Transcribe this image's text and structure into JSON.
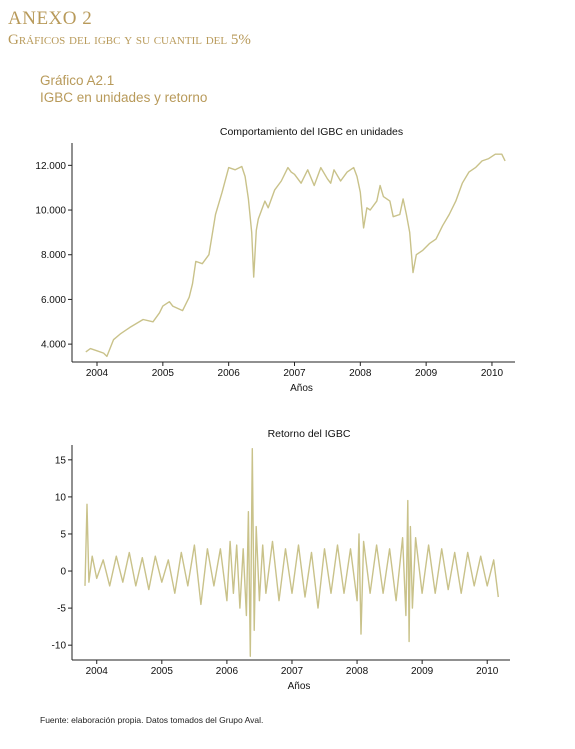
{
  "header": {
    "annex_title": "ANEXO 2",
    "annex_subtitle": "Gráficos del igbc y su cuantil del 5%",
    "figure_number": "Gráfico A2.1",
    "figure_title": "IGBC en unidades y retorno"
  },
  "footer": {
    "source": "Fuente: elaboración propia. Datos tomados del Grupo Aval."
  },
  "colors": {
    "series": "#c9c28a",
    "axis": "#222222",
    "heading": "#b89a5a"
  },
  "chart_data": [
    {
      "type": "line",
      "title": "Comportamiento del IGBC en unidades",
      "xlabel": "Años",
      "ylabel": "",
      "xlim": [
        2003.62,
        2010.35
      ],
      "ylim": [
        3200,
        13000
      ],
      "xticks": [
        2004,
        2005,
        2006,
        2007,
        2008,
        2009,
        2010
      ],
      "xtick_labels": [
        "2004",
        "2005",
        "2006",
        "2007",
        "2008",
        "2009",
        "2010"
      ],
      "yticks": [
        4000,
        6000,
        8000,
        10000,
        12000
      ],
      "ytick_labels": [
        "4.000",
        "6.000",
        "8.000",
        "10.000",
        "12.000"
      ],
      "grid": false,
      "series": [
        {
          "x": [
            2003.83,
            2003.9,
            2004.0,
            2004.1,
            2004.15,
            2004.25,
            2004.35,
            2004.5,
            2004.7,
            2004.85,
            2004.95,
            2005.0,
            2005.1,
            2005.15,
            2005.3,
            2005.4,
            2005.45,
            2005.5,
            2005.6,
            2005.7,
            2005.8,
            2005.9,
            2006.0,
            2006.1,
            2006.2,
            2006.25,
            2006.3,
            2006.35,
            2006.38,
            2006.42,
            2006.45,
            2006.55,
            2006.6,
            2006.7,
            2006.8,
            2006.9,
            2006.95,
            2007.0,
            2007.1,
            2007.2,
            2007.3,
            2007.4,
            2007.5,
            2007.55,
            2007.6,
            2007.7,
            2007.8,
            2007.9,
            2007.95,
            2008.0,
            2008.05,
            2008.1,
            2008.15,
            2008.25,
            2008.3,
            2008.35,
            2008.45,
            2008.5,
            2008.6,
            2008.65,
            2008.7,
            2008.75,
            2008.8,
            2008.85,
            2008.95,
            2009.05,
            2009.15,
            2009.25,
            2009.35,
            2009.45,
            2009.55,
            2009.65,
            2009.75,
            2009.85,
            2009.95,
            2010.05,
            2010.15,
            2010.2
          ],
          "y": [
            3650,
            3800,
            3700,
            3600,
            3450,
            4200,
            4450,
            4750,
            5100,
            5000,
            5400,
            5700,
            5900,
            5700,
            5500,
            6100,
            6700,
            7700,
            7600,
            8000,
            9800,
            10800,
            11900,
            11800,
            11950,
            11500,
            10500,
            9000,
            7000,
            9100,
            9600,
            10400,
            10100,
            10900,
            11300,
            11900,
            11700,
            11600,
            11200,
            11800,
            11100,
            11900,
            11400,
            11200,
            11800,
            11300,
            11700,
            11900,
            11500,
            10800,
            9200,
            10100,
            10000,
            10400,
            11100,
            10600,
            10400,
            9700,
            9800,
            10500,
            9800,
            9000,
            7200,
            8000,
            8200,
            8500,
            8700,
            9300,
            9800,
            10400,
            11200,
            11700,
            11900,
            12200,
            12300,
            12500,
            12500,
            12200
          ]
        }
      ]
    },
    {
      "type": "line",
      "title": "Retorno del IGBC",
      "xlabel": "Años",
      "ylabel": "",
      "xlim": [
        2003.62,
        2010.35
      ],
      "ylim": [
        -12,
        17
      ],
      "xticks": [
        2004,
        2005,
        2006,
        2007,
        2008,
        2009,
        2010
      ],
      "xtick_labels": [
        "2004",
        "2005",
        "2006",
        "2007",
        "2008",
        "2009",
        "2010"
      ],
      "yticks": [
        -10,
        -5,
        0,
        5,
        10,
        15
      ],
      "ytick_labels": [
        "-10",
        "-5",
        "0",
        "5",
        "10",
        "15"
      ],
      "grid": false,
      "series": [
        {
          "x": [
            2003.82,
            2003.85,
            2003.88,
            2003.93,
            2004.0,
            2004.1,
            2004.2,
            2004.3,
            2004.4,
            2004.5,
            2004.6,
            2004.7,
            2004.8,
            2004.9,
            2005.0,
            2005.1,
            2005.2,
            2005.3,
            2005.4,
            2005.5,
            2005.6,
            2005.7,
            2005.8,
            2005.9,
            2006.0,
            2006.05,
            2006.1,
            2006.15,
            2006.2,
            2006.25,
            2006.3,
            2006.33,
            2006.36,
            2006.39,
            2006.42,
            2006.45,
            2006.5,
            2006.55,
            2006.6,
            2006.7,
            2006.8,
            2006.9,
            2007.0,
            2007.1,
            2007.2,
            2007.3,
            2007.4,
            2007.5,
            2007.6,
            2007.7,
            2007.8,
            2007.9,
            2008.0,
            2008.03,
            2008.06,
            2008.1,
            2008.2,
            2008.3,
            2008.4,
            2008.5,
            2008.6,
            2008.7,
            2008.75,
            2008.78,
            2008.8,
            2008.82,
            2008.85,
            2008.9,
            2009.0,
            2009.1,
            2009.2,
            2009.3,
            2009.4,
            2009.5,
            2009.6,
            2009.7,
            2009.8,
            2009.9,
            2010.0,
            2010.1,
            2010.17
          ],
          "y": [
            -2,
            9,
            -1.5,
            2,
            -1,
            1.5,
            -2,
            2,
            -1.5,
            2.5,
            -2,
            1.8,
            -2.5,
            2,
            -1.5,
            1.5,
            -3,
            2.5,
            -2,
            3.5,
            -4.5,
            3,
            -2,
            3,
            -4,
            4,
            -3,
            3.5,
            -5,
            3,
            -6,
            8,
            -11.5,
            16.5,
            -8,
            6,
            -4,
            3.5,
            -3,
            4,
            -4,
            3,
            -3,
            3.5,
            -3.5,
            2.5,
            -5,
            3,
            -3,
            3.5,
            -3,
            3,
            -4,
            5,
            -8.5,
            4,
            -3,
            3.5,
            -3,
            3,
            -4,
            4.5,
            -6,
            9.5,
            -9.5,
            6,
            -5,
            4.5,
            -3,
            3.5,
            -3,
            3,
            -2.5,
            2.5,
            -3,
            2.5,
            -2,
            2,
            -2,
            1.5,
            -3.5
          ]
        }
      ]
    }
  ]
}
